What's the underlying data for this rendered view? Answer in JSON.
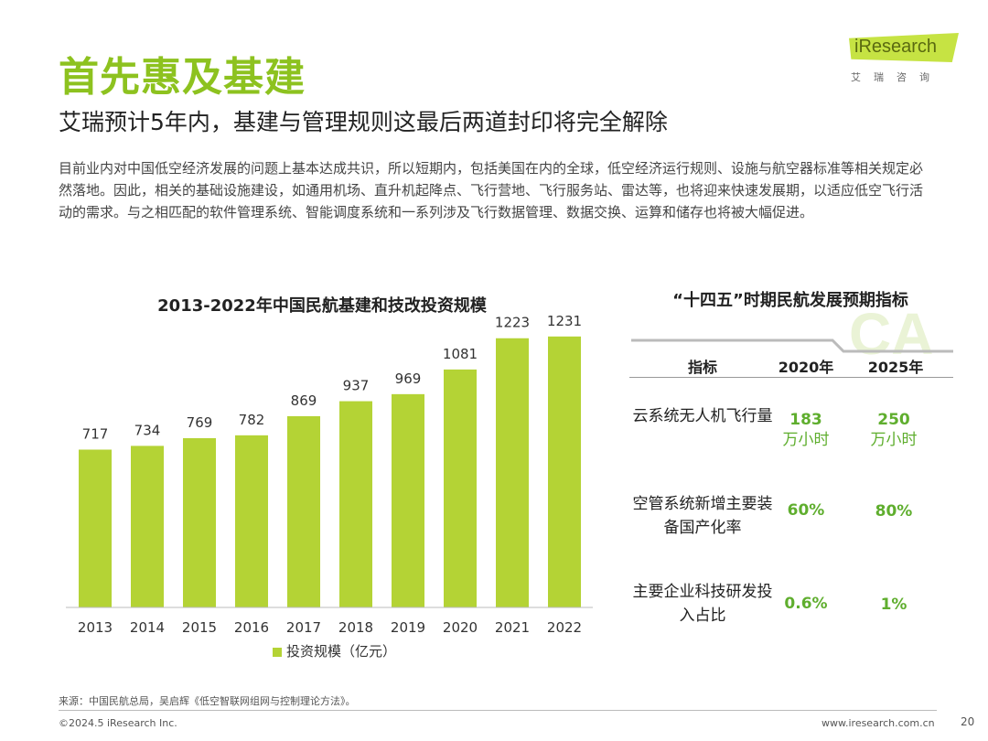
{
  "header": {
    "title": "首先惠及基建",
    "subtitle": "艾瑞预计5年内，基建与管理规则这最后两道封印将完全解除",
    "body": "目前业内对中国低空经济发展的问题上基本达成共识，所以短期内，包括美国在内的全球，低空经济运行规则、设施与航空器标准等相关规定必然落地。因此，相关的基础设施建设，如通用机场、直升机起降点、飞行营地、飞行服务站、雷达等，也将迎来快速发展期，以适应低空飞行活动的需求。与之相匹配的软件管理系统、智能调度系统和一系列涉及飞行数据管理、数据交换、运算和储存也将被大幅促进。"
  },
  "logo": {
    "text": "iResearch",
    "sub": "艾瑞咨询"
  },
  "colors": {
    "accent": "#8dc21f",
    "bar": "#b4d335",
    "value_green": "#5fae2e"
  },
  "chart_data": {
    "type": "bar",
    "title": "2013-2022年中国民航基建和技改投资规模",
    "categories": [
      "2013",
      "2014",
      "2015",
      "2016",
      "2017",
      "2018",
      "2019",
      "2020",
      "2021",
      "2022"
    ],
    "values": [
      717,
      734,
      769,
      782,
      869,
      937,
      969,
      1081,
      1223,
      1231
    ],
    "legend": "投资规模（亿元）",
    "xlabel": "",
    "ylabel": "",
    "ylim": [
      0,
      1300
    ]
  },
  "table": {
    "title": "“十四五”时期民航发展预期指标",
    "watermark": "CA",
    "headers": [
      "指标",
      "2020年",
      "2025年"
    ],
    "rows": [
      {
        "label": "云系统无人机飞行量",
        "v2020": "183",
        "v2020_unit": "万小时",
        "v2025": "250",
        "v2025_unit": "万小时"
      },
      {
        "label": "空管系统新增主要装备国产化率",
        "v2020": "60%",
        "v2025": "80%"
      },
      {
        "label": "主要企业科技研发投入占比",
        "v2020": "0.6%",
        "v2025": "1%"
      }
    ]
  },
  "footer": {
    "source": "来源：中国民航总局，吴启辉《低空智联网组网与控制理论方法》。",
    "copyright": "©2024.5 iResearch Inc.",
    "website": "www.iresearch.com.cn",
    "page": "20"
  }
}
